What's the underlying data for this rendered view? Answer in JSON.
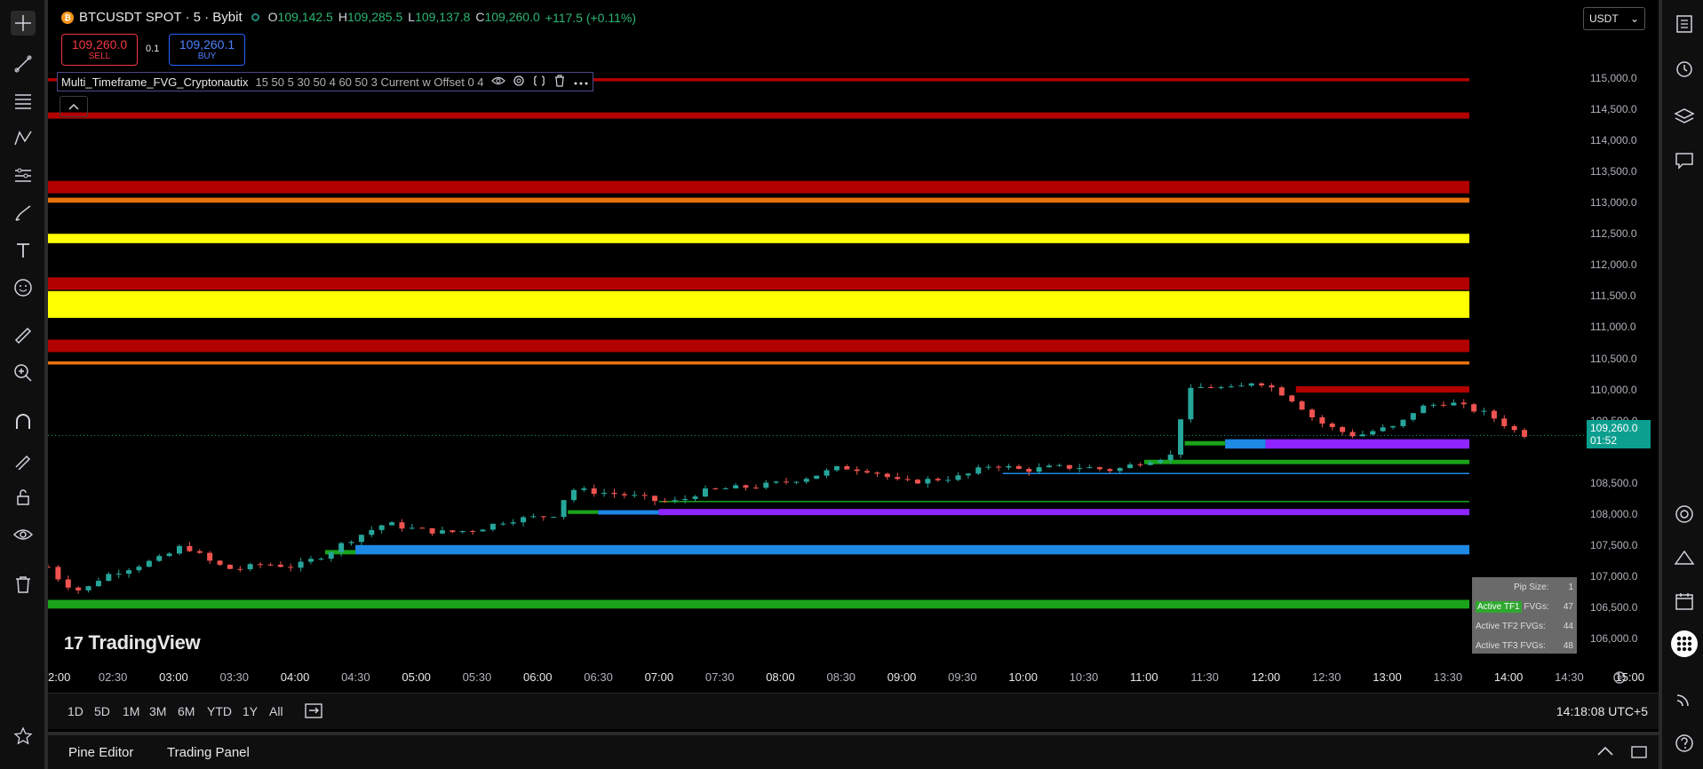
{
  "header": {
    "btc_glyph": "₿",
    "title": "BTCUSDT SPOT · 5 · Bybit",
    "o_label": "O",
    "o_value": "109,142.5",
    "h_label": "H",
    "h_value": "109,285.5",
    "l_label": "L",
    "l_value": "109,137.8",
    "c_label": "C",
    "c_value": "109,260.0",
    "change": "+117.5 (+0.11%)"
  },
  "trade": {
    "sell_price": "109,260.0",
    "sell_label": "SELL",
    "quantity": "0.1",
    "buy_price": "109,260.1",
    "buy_label": "BUY"
  },
  "indicator": {
    "name": "Multi_Timeframe_FVG_Cryptonautix",
    "params": "15 50 5 30 50 4 60 50 3 Current w Offset 0 4"
  },
  "currency": "USDT",
  "price_axis": [
    "115,000.0",
    "114,500.0",
    "114,000.0",
    "113,500.0",
    "113,000.0",
    "112,500.0",
    "112,000.0",
    "111,500.0",
    "111,000.0",
    "110,500.0",
    "110,000.0",
    "109,500.0",
    "108,500.0",
    "108,000.0",
    "107,500.0",
    "107,000.0",
    "106,500.0",
    "106,000.0"
  ],
  "current_price": {
    "value": "109,260.0",
    "countdown": "01:52"
  },
  "watermark": "TradingView",
  "fvg_table": [
    {
      "label": "Pip Size:",
      "value": "1"
    },
    {
      "label_hl": "Active TF1",
      "label": " FVGs:",
      "value": "47"
    },
    {
      "label": "Active TF2 FVGs:",
      "value": "44"
    },
    {
      "label": "Active TF3 FVGs:",
      "value": "48"
    }
  ],
  "time_axis": [
    "2:00",
    "02:30",
    "03:00",
    "03:30",
    "04:00",
    "04:30",
    "05:00",
    "05:30",
    "06:00",
    "06:30",
    "07:00",
    "07:30",
    "08:00",
    "08:30",
    "09:00",
    "09:30",
    "10:00",
    "10:30",
    "11:00",
    "11:30",
    "12:00",
    "12:30",
    "13:00",
    "13:30",
    "14:00",
    "14:30",
    "15:00"
  ],
  "ranges": [
    "1D",
    "5D",
    "1M",
    "3M",
    "6M",
    "YTD",
    "1Y",
    "All"
  ],
  "clock": "14:18:08 UTC+5",
  "footer": {
    "pine_editor": "Pine Editor",
    "trading_panel": "Trading Panel"
  },
  "colors": {
    "up": "#26a69a",
    "down": "#ef5350",
    "red_zone": "#b30000",
    "orange_zone": "#e8720c",
    "yellow_zone": "#ffff00",
    "green_fvg": "#1aa31a",
    "blue_fvg": "#1e88e5",
    "purple_fvg": "#8e24ff"
  },
  "chart_data": {
    "type": "candlestick",
    "symbol": "BTCUSDT SPOT",
    "interval_minutes": 5,
    "ylim": [
      105700,
      115400
    ],
    "x_start": "01:58",
    "x_end": "15:02",
    "close_path": [
      [
        "01:58",
        107150
      ],
      [
        "02:05",
        106900
      ],
      [
        "02:15",
        106750
      ],
      [
        "02:25",
        107000
      ],
      [
        "02:40",
        107150
      ],
      [
        "02:55",
        107300
      ],
      [
        "03:05",
        107500
      ],
      [
        "03:20",
        107200
      ],
      [
        "03:30",
        107100
      ],
      [
        "03:45",
        107200
      ],
      [
        "04:00",
        107150
      ],
      [
        "04:15",
        107350
      ],
      [
        "04:25",
        107550
      ],
      [
        "04:35",
        107700
      ],
      [
        "04:45",
        107850
      ],
      [
        "05:00",
        107750
      ],
      [
        "05:15",
        107700
      ],
      [
        "05:30",
        107750
      ],
      [
        "05:45",
        107900
      ],
      [
        "06:00",
        107950
      ],
      [
        "06:10",
        108000
      ],
      [
        "06:15",
        108400
      ],
      [
        "06:30",
        108350
      ],
      [
        "06:45",
        108300
      ],
      [
        "07:00",
        108200
      ],
      [
        "07:10",
        108200
      ],
      [
        "07:20",
        108350
      ],
      [
        "07:30",
        108400
      ],
      [
        "07:50",
        108450
      ],
      [
        "08:00",
        108500
      ],
      [
        "08:15",
        108600
      ],
      [
        "08:30",
        108750
      ],
      [
        "08:45",
        108700
      ],
      [
        "09:00",
        108500
      ],
      [
        "09:15",
        108550
      ],
      [
        "09:30",
        108600
      ],
      [
        "09:45",
        108800
      ],
      [
        "10:00",
        108700
      ],
      [
        "10:15",
        108750
      ],
      [
        "10:30",
        108750
      ],
      [
        "10:45",
        108700
      ],
      [
        "11:00",
        108850
      ],
      [
        "11:15",
        108950
      ],
      [
        "11:20",
        109950
      ],
      [
        "11:30",
        110050
      ],
      [
        "11:45",
        110000
      ],
      [
        "11:55",
        110150
      ],
      [
        "12:05",
        110000
      ],
      [
        "12:15",
        109800
      ],
      [
        "12:25",
        109500
      ],
      [
        "12:35",
        109350
      ],
      [
        "12:45",
        109250
      ],
      [
        "12:55",
        109350
      ],
      [
        "13:05",
        109400
      ],
      [
        "13:15",
        109700
      ],
      [
        "13:30",
        109800
      ],
      [
        "13:40",
        109700
      ],
      [
        "13:50",
        109600
      ],
      [
        "13:55",
        109500
      ],
      [
        "14:00",
        109400
      ],
      [
        "14:05",
        109300
      ],
      [
        "14:10",
        109260
      ]
    ],
    "zones": [
      {
        "color": "red",
        "low": 114950,
        "high": 115000
      },
      {
        "color": "red",
        "low": 114350,
        "high": 114450
      },
      {
        "color": "red",
        "low": 113150,
        "high": 113350
      },
      {
        "color": "orange",
        "low": 113000,
        "high": 113080
      },
      {
        "color": "yellow",
        "low": 112350,
        "high": 112500
      },
      {
        "color": "red",
        "low": 111600,
        "high": 111800
      },
      {
        "color": "yellow",
        "low": 111150,
        "high": 111580
      },
      {
        "color": "red",
        "low": 110600,
        "high": 110800
      },
      {
        "color": "orange",
        "low": 110400,
        "high": 110450
      },
      {
        "color": "red",
        "low": 109950,
        "high": 110050,
        "from": "12:15"
      },
      {
        "color": "purple",
        "low": 109050,
        "high": 109200,
        "from": "12:00"
      },
      {
        "color": "blue",
        "low": 109050,
        "high": 109200,
        "from": "11:40",
        "to": "12:00"
      },
      {
        "color": "green",
        "low": 109100,
        "high": 109170,
        "from": "11:20",
        "to": "11:40"
      },
      {
        "color": "green",
        "low": 108800,
        "high": 108870,
        "from": "11:00"
      },
      {
        "color": "blue",
        "low": 108640,
        "high": 108660,
        "from": "09:50"
      },
      {
        "color": "green",
        "low": 108190,
        "high": 108210,
        "from": "07:00"
      },
      {
        "color": "purple",
        "low": 107980,
        "high": 108080,
        "from": "07:00"
      },
      {
        "color": "blue",
        "low": 107990,
        "high": 108060,
        "from": "06:30",
        "to": "07:00"
      },
      {
        "color": "green",
        "low": 108000,
        "high": 108060,
        "from": "06:15",
        "to": "06:30"
      },
      {
        "color": "blue",
        "low": 107350,
        "high": 107500,
        "from": "04:30"
      },
      {
        "color": "green",
        "low": 107350,
        "high": 107420,
        "from": "04:15",
        "to": "04:30"
      },
      {
        "color": "green",
        "low": 106480,
        "high": 106620
      }
    ]
  }
}
